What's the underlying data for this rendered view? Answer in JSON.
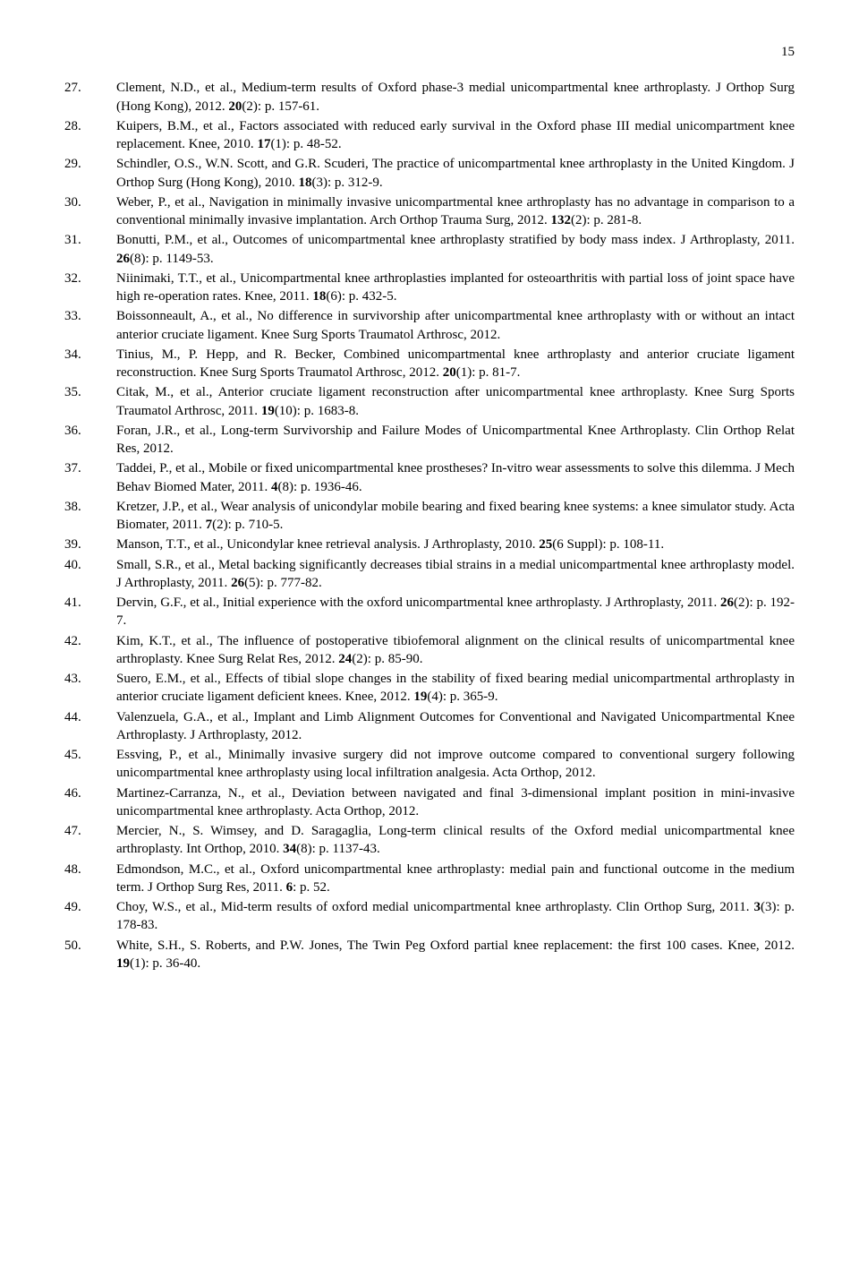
{
  "page_number": "15",
  "font_family": "Times New Roman",
  "font_size_pt": 11,
  "text_color": "#000000",
  "background_color": "#ffffff",
  "references": [
    {
      "n": "27.",
      "html": "Clement, N.D., et al., Medium-term results of Oxford phase-3 medial unicompartmental knee arthroplasty. J Orthop Surg (Hong Kong), 2012. <span class='b'>20</span>(2): p. 157-61."
    },
    {
      "n": "28.",
      "html": "Kuipers, B.M., et al., Factors associated with reduced early survival in the Oxford phase III medial unicompartment knee replacement. Knee, 2010. <span class='b'>17</span>(1): p. 48-52."
    },
    {
      "n": "29.",
      "html": "Schindler, O.S., W.N. Scott, and G.R. Scuderi, The practice of unicompartmental knee arthroplasty in the United Kingdom. J Orthop Surg (Hong Kong), 2010. <span class='b'>18</span>(3): p. 312-9."
    },
    {
      "n": "30.",
      "html": "Weber, P., et al., Navigation in minimally invasive unicompartmental knee arthroplasty has no advantage in comparison to a conventional minimally invasive implantation. Arch Orthop Trauma Surg, 2012. <span class='b'>132</span>(2): p. 281-8."
    },
    {
      "n": "31.",
      "html": "Bonutti, P.M., et al., Outcomes of unicompartmental knee arthroplasty stratified by body mass index. J Arthroplasty, 2011. <span class='b'>26</span>(8): p. 1149-53."
    },
    {
      "n": "32.",
      "html": "Niinimaki, T.T., et al., Unicompartmental knee arthroplasties implanted for osteoarthritis with partial loss of joint space have high re-operation rates. Knee, 2011. <span class='b'>18</span>(6): p. 432-5."
    },
    {
      "n": "33.",
      "html": "Boissonneault, A., et al., No difference in survivorship after unicompartmental knee arthroplasty with or without an intact anterior cruciate ligament. Knee Surg Sports Traumatol Arthrosc, 2012."
    },
    {
      "n": "34.",
      "html": "Tinius, M., P. Hepp, and R. Becker, Combined unicompartmental knee arthroplasty and anterior cruciate ligament reconstruction. Knee Surg Sports Traumatol Arthrosc, 2012. <span class='b'>20</span>(1): p. 81-7."
    },
    {
      "n": "35.",
      "html": "Citak, M., et al., Anterior cruciate ligament reconstruction after unicompartmental knee arthroplasty. Knee Surg Sports Traumatol Arthrosc, 2011. <span class='b'>19</span>(10): p. 1683-8."
    },
    {
      "n": "36.",
      "html": "Foran, J.R., et al., Long-term Survivorship and Failure Modes of Unicompartmental Knee Arthroplasty. Clin Orthop Relat Res, 2012."
    },
    {
      "n": "37.",
      "html": "Taddei, P., et al., Mobile or fixed unicompartmental knee prostheses? In-vitro wear assessments to solve this dilemma. J Mech Behav Biomed Mater, 2011. <span class='b'>4</span>(8): p. 1936-46."
    },
    {
      "n": "38.",
      "html": "Kretzer, J.P., et al., Wear analysis of unicondylar mobile bearing and fixed bearing knee systems: a knee simulator study. Acta Biomater, 2011. <span class='b'>7</span>(2): p. 710-5."
    },
    {
      "n": "39.",
      "html": "Manson, T.T., et al., Unicondylar knee retrieval analysis. J Arthroplasty, 2010. <span class='b'>25</span>(6 Suppl): p. 108-11."
    },
    {
      "n": "40.",
      "html": "Small, S.R., et al., Metal backing significantly decreases tibial strains in a medial unicompartmental knee arthroplasty model. J Arthroplasty, 2011. <span class='b'>26</span>(5): p. 777-82."
    },
    {
      "n": "41.",
      "html": "Dervin, G.F., et al., Initial experience with the oxford unicompartmental knee arthroplasty. J Arthroplasty, 2011. <span class='b'>26</span>(2): p. 192-7."
    },
    {
      "n": "42.",
      "html": "Kim, K.T., et al., The influence of postoperative tibiofemoral alignment on the clinical results of unicompartmental knee arthroplasty. Knee Surg Relat Res, 2012. <span class='b'>24</span>(2): p. 85-90."
    },
    {
      "n": "43.",
      "html": "Suero, E.M., et al., Effects of tibial slope changes in the stability of fixed bearing medial unicompartmental arthroplasty in anterior cruciate ligament deficient knees. Knee, 2012. <span class='b'>19</span>(4): p. 365-9."
    },
    {
      "n": "44.",
      "html": "Valenzuela, G.A., et al., Implant and Limb Alignment Outcomes for Conventional and Navigated Unicompartmental Knee Arthroplasty. J Arthroplasty, 2012."
    },
    {
      "n": "45.",
      "html": "Essving, P., et al., Minimally invasive surgery did not improve outcome compared to conventional surgery following unicompartmental knee arthroplasty using local infiltration analgesia. Acta Orthop, 2012."
    },
    {
      "n": "46.",
      "html": "Martinez-Carranza, N., et al., Deviation between navigated and final 3-dimensional implant position in mini-invasive unicompartmental knee arthroplasty. Acta Orthop, 2012."
    },
    {
      "n": "47.",
      "html": "Mercier, N., S. Wimsey, and D. Saragaglia, Long-term clinical results of the Oxford medial unicompartmental knee arthroplasty. Int Orthop, 2010. <span class='b'>34</span>(8): p. 1137-43."
    },
    {
      "n": "48.",
      "html": "Edmondson, M.C., et al., Oxford unicompartmental knee arthroplasty: medial pain and functional outcome in the medium term. J Orthop Surg Res, 2011. <span class='b'>6</span>: p. 52."
    },
    {
      "n": "49.",
      "html": "Choy, W.S., et al., Mid-term results of oxford medial unicompartmental knee arthroplasty. Clin Orthop Surg, 2011. <span class='b'>3</span>(3): p. 178-83."
    },
    {
      "n": "50.",
      "html": "White, S.H., S. Roberts, and P.W. Jones, The Twin Peg Oxford partial knee replacement: the first 100 cases. Knee, 2012. <span class='b'>19</span>(1): p. 36-40."
    }
  ]
}
